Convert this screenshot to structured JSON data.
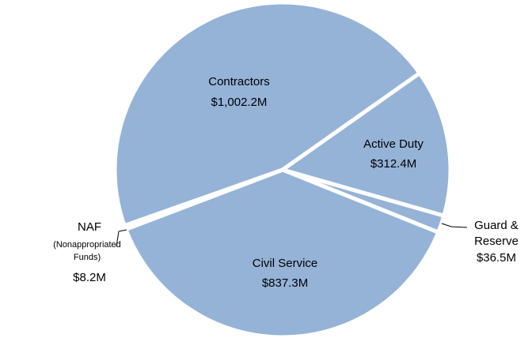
{
  "chart_data": {
    "type": "pie",
    "categories": [
      "Contractors",
      "Active Duty",
      "Guard & Reserve",
      "Civil Service",
      "NAF"
    ],
    "values": [
      1002.2,
      312.4,
      36.5,
      837.3,
      8.2
    ],
    "value_labels": [
      "$1,002.2M",
      "$312.4M",
      "$36.5M",
      "$837.3M",
      "$8.2M"
    ],
    "annotations": [
      "(Nonappropriated Funds)"
    ],
    "color": "#95b3d7"
  }
}
